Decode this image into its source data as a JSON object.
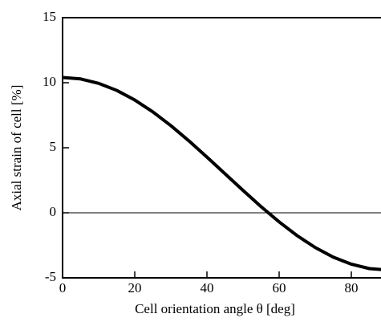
{
  "chart_data": {
    "type": "line",
    "x_label": "Cell orientation angle θ [deg]",
    "y_label": "Axial strain of cell [%]",
    "x": [
      0,
      5,
      10,
      15,
      20,
      25,
      30,
      35,
      40,
      45,
      50,
      55,
      60,
      65,
      70,
      75,
      80,
      85,
      90
    ],
    "series": [
      {
        "color": "#000000",
        "values": [
          10.4,
          10.29,
          9.95,
          9.41,
          8.67,
          7.76,
          6.7,
          5.53,
          4.28,
          3.0,
          1.72,
          0.47,
          -0.7,
          -1.76,
          -2.67,
          -3.41,
          -3.95,
          -4.29,
          -4.4
        ]
      }
    ],
    "xlim": [
      0,
      90
    ],
    "xticks": [
      0,
      20,
      40,
      60,
      80
    ],
    "ylim": [
      -5,
      15
    ],
    "yticks": [
      -5,
      0,
      5,
      10,
      15
    ],
    "zero_line": true
  }
}
